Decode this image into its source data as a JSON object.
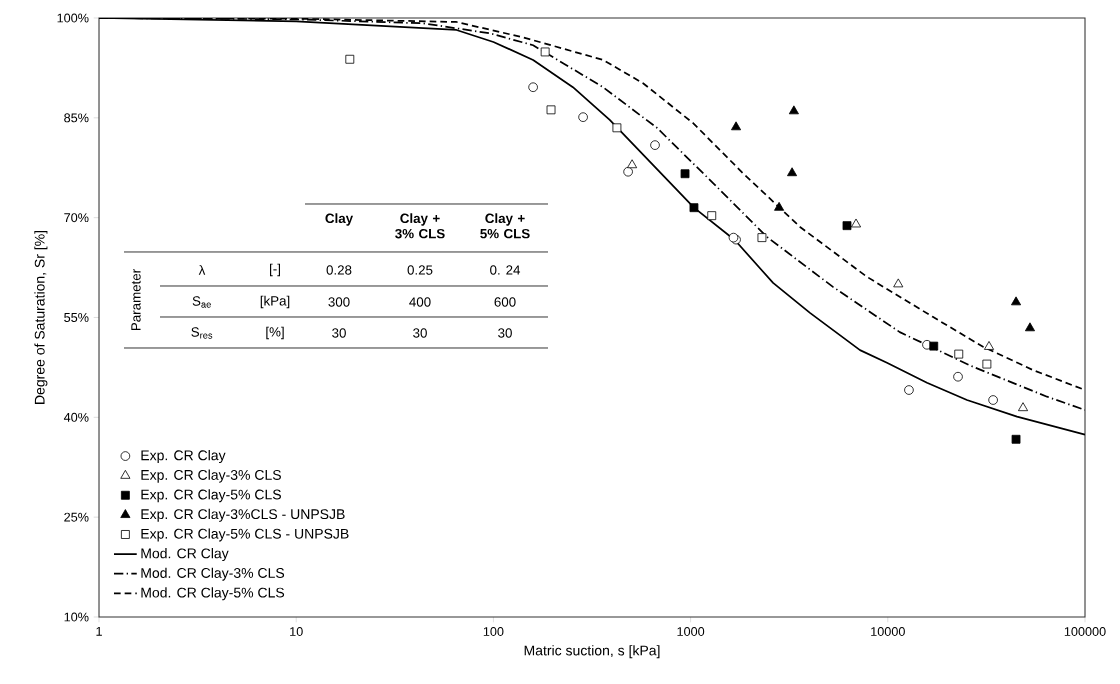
{
  "chart_data": {
    "type": "scatter",
    "xlabel": "Matric suction, s [kPa]",
    "ylabel": "Degree of Saturation, Sr [%]",
    "log": "x",
    "xlim": [
      1,
      100000
    ],
    "xticks": [
      1,
      10,
      100,
      1000,
      10000,
      100000
    ],
    "ylim": [
      10,
      100
    ],
    "yticks": [
      {
        "value": 10,
        "label": "10%"
      },
      {
        "value": 25,
        "label": "25%"
      },
      {
        "value": 40,
        "label": "40%"
      },
      {
        "value": 55,
        "label": "55%"
      },
      {
        "value": 70,
        "label": "70%"
      },
      {
        "value": 85,
        "label": "85%"
      },
      {
        "value": 100,
        "label": "100%"
      }
    ],
    "grid": false,
    "legend": "bottom left",
    "series": [
      {
        "name": "Exp. CR Clay",
        "marker": "circle",
        "color": "#ffffff",
        "x": [
          159,
          285,
          660,
          482,
          1700,
          1650,
          15800,
          22700,
          12800,
          34200
        ],
        "values": [
          89.6,
          85.1,
          80.9,
          76.9,
          66.7,
          67.0,
          50.9,
          46.1,
          44.1,
          42.6
        ]
      },
      {
        "name": "Exp. CR Clay-3% CLS",
        "marker": "triangle",
        "color": "#ffffff",
        "x": [
          505,
          6900,
          11300,
          32600,
          48500
        ],
        "values": [
          77.9,
          69.0,
          60.0,
          50.6,
          41.4
        ]
      },
      {
        "name": "Exp. CR Clay-5% CLS",
        "marker": "square",
        "color": "#000000",
        "x": [
          937,
          1040,
          6210,
          17100,
          44700
        ],
        "values": [
          76.6,
          71.5,
          68.8,
          50.7,
          36.7
        ]
      },
      {
        "name": "Exp. CR Clay-3%CLS - UNPSJB",
        "marker": "triangle",
        "color": "#000000",
        "x": [
          1700,
          3340,
          3270,
          2810,
          44700,
          52600
        ],
        "values": [
          83.6,
          86.0,
          76.7,
          71.5,
          57.3,
          53.4
        ]
      },
      {
        "name": "Exp. CR Clay-5% CLS - UNPSJB",
        "marker": "square",
        "color": "#ffffff",
        "x": [
          18.7,
          183,
          196,
          423,
          1280,
          2300,
          22900,
          31800
        ],
        "values": [
          93.8,
          94.9,
          86.2,
          83.5,
          70.3,
          67.0,
          49.5,
          48.0
        ]
      },
      {
        "name": "Mod. CR Clay",
        "type": "line",
        "line_style": "solid",
        "color": "#000000",
        "x": [
          1,
          10,
          65,
          100,
          159,
          253,
          389,
          1040,
          1680,
          2620,
          4030,
          7230,
          9900,
          15800,
          25200,
          45200,
          100000
        ],
        "values": [
          100,
          99.5,
          98.2,
          96.4,
          93.7,
          89.6,
          84.7,
          71.5,
          66.6,
          60.2,
          55.7,
          50.1,
          48.2,
          45.2,
          42.6,
          40.1,
          37.4
        ]
      },
      {
        "name": "Mod. CR Clay-3% CLS",
        "type": "line",
        "line_style": "dashdot",
        "color": "#000000",
        "x": [
          1,
          10,
          44,
          96,
          159,
          360,
          675,
          1300,
          2440,
          5270,
          11500,
          27000,
          64200,
          100000
        ],
        "values": [
          100,
          99.8,
          99.2,
          97.7,
          95.9,
          89.6,
          83.5,
          75.2,
          67.1,
          59.6,
          52.8,
          47.6,
          43.1,
          41.1
        ]
      },
      {
        "name": "Mod. CR Clay-5% CLS",
        "type": "line",
        "line_style": "dashed",
        "color": "#000000",
        "x": [
          1,
          10,
          65,
          141,
          360,
          574,
          1030,
          1840,
          3590,
          7850,
          16900,
          30400,
          54500,
          100000
        ],
        "values": [
          100,
          99.9,
          99.4,
          97.1,
          93.7,
          90.2,
          84.2,
          76.7,
          68.6,
          61.1,
          55.1,
          50.6,
          47.1,
          44.1
        ]
      }
    ],
    "annotations": [
      "Clay",
      "Clay + 3% CLS",
      "Clay + 5% CLS",
      "Parameter",
      "λ",
      "[-]",
      "0.28",
      "0.25",
      "0. 24",
      "S$_{ae}$",
      "[kPa]",
      "300",
      "400",
      "600",
      "S$_{res}$",
      "[%]",
      "30",
      "30",
      "30"
    ]
  }
}
